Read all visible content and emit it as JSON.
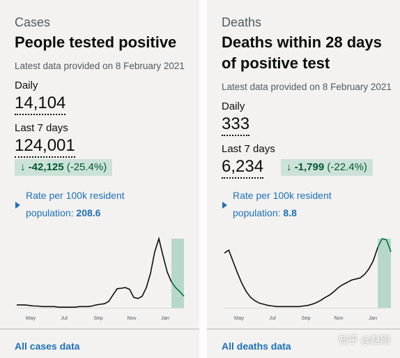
{
  "cases": {
    "caption": "Cases",
    "title": "People tested positive",
    "updated": "Latest data provided on 8 February 2021",
    "daily_label": "Daily",
    "daily_value": "14,104",
    "week_label": "Last 7 days",
    "week_value": "124,001",
    "change_value": "-42,125",
    "change_pct": "(-25.4%)",
    "rate_line1": "Rate per 100k resident",
    "rate_line2": "population:",
    "rate_value": "208.6",
    "link": "All cases data"
  },
  "deaths": {
    "caption": "Deaths",
    "title_line1": "Deaths within 28 days",
    "title_line2": "of positive test",
    "updated": "Latest data provided on 8 February 2021",
    "daily_label": "Daily",
    "daily_value": "333",
    "week_label": "Last 7 days",
    "week_value": "6,234",
    "change_value": "-1,799",
    "change_pct": "(-22.4%)",
    "rate_line1": "Rate per 100k resident",
    "rate_line2": "population:",
    "rate_value": "8.8",
    "link": "All deaths data"
  },
  "colors": {
    "background": "#f3f2f1",
    "link_blue": "#1d70b8",
    "down_green": "#005a30",
    "down_green_bg": "#cce2d8",
    "trend_line": "#0b0c0c",
    "latest_band": "#b7d8c8"
  },
  "icons": {
    "change": "arrow-down-icon",
    "rate": "triangle-right-icon"
  },
  "watermark": "知乎 @赵刚",
  "chart_data": [
    {
      "type": "line",
      "x_ticks": [
        "May",
        "Jul",
        "Sep",
        "Nov",
        "Jan"
      ],
      "x": [
        0,
        1,
        2,
        3,
        4,
        5,
        6,
        7,
        8,
        9,
        10,
        11,
        12,
        13,
        14,
        15,
        16,
        17,
        18,
        19,
        20,
        21,
        22,
        23,
        24,
        25,
        26,
        27,
        28,
        29,
        30,
        31,
        32,
        33,
        34,
        35,
        36,
        37,
        38,
        39,
        40
      ],
      "values": [
        5,
        5,
        5,
        4,
        3,
        3,
        2,
        2,
        2,
        2,
        1,
        1,
        1,
        1,
        1,
        2,
        2,
        2,
        3,
        5,
        6,
        7,
        11,
        22,
        33,
        34,
        35,
        32,
        18,
        16,
        20,
        35,
        60,
        97,
        120,
        90,
        62,
        45,
        35,
        28,
        20
      ],
      "highlight_last": 3
    },
    {
      "type": "line",
      "x_ticks": [
        "May",
        "Jul",
        "Sep",
        "Nov",
        "Jan"
      ],
      "x": [
        0,
        1,
        2,
        3,
        4,
        5,
        6,
        7,
        8,
        9,
        10,
        11,
        12,
        13,
        14,
        15,
        16,
        17,
        18,
        19,
        20,
        21,
        22,
        23,
        24,
        25,
        26,
        27,
        28,
        29,
        30,
        31,
        32,
        33,
        34,
        35,
        36,
        37,
        38
      ],
      "values": [
        95,
        100,
        80,
        60,
        42,
        28,
        18,
        12,
        8,
        6,
        4,
        3,
        2,
        2,
        2,
        2,
        2,
        2,
        3,
        4,
        6,
        9,
        13,
        18,
        22,
        28,
        35,
        40,
        44,
        48,
        50,
        52,
        58,
        68,
        82,
        105,
        120,
        118,
        97
      ],
      "highlight_last": 3
    }
  ]
}
